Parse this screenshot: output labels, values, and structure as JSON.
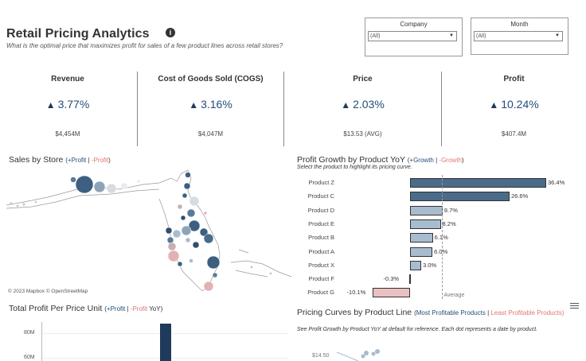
{
  "header": {
    "title": "Retail Pricing Analytics",
    "info_icon": "i",
    "subtitle": "What is the optimal price that maximizes profit for sales of a few product lines across retail stores?"
  },
  "filters": [
    {
      "label": "Company",
      "value": "(All)"
    },
    {
      "label": "Month",
      "value": "(All)"
    }
  ],
  "kpis": [
    {
      "label": "Revenue",
      "change": "3.77%",
      "value": "$4,454M"
    },
    {
      "label": "Cost of Goods Sold (COGS)",
      "change": "3.16%",
      "value": "$4,047M"
    },
    {
      "label": "Price",
      "change": "2.03%",
      "value": "$13.53 (AVG)"
    },
    {
      "label": "Profit",
      "change": "10.24%",
      "value": "$407.4M"
    }
  ],
  "map": {
    "title": "Sales by Store",
    "legend_pos": "+Profit",
    "legend_sep": "|",
    "legend_neg": "-Profit",
    "attribution": "© 2023 Mapbox  © OpenStreetMap"
  },
  "profit_growth": {
    "title": "Profit Growth by Product YoY",
    "legend_pos": "+Growth",
    "legend_sep": "|",
    "legend_neg": "-Growth",
    "note": "Select the product to highlight its pricing curve.",
    "average_label": "Average"
  },
  "chart_data": [
    {
      "type": "bar",
      "title": "Profit Growth by Product YoY",
      "categories": [
        "Product Z",
        "Product C",
        "Product D",
        "Product E",
        "Product B",
        "Product A",
        "Product X",
        "Product F",
        "Product G"
      ],
      "values": [
        36.4,
        26.6,
        8.7,
        8.2,
        6.1,
        6.0,
        3.0,
        -0.3,
        -10.1
      ],
      "labels": [
        "36.4%",
        "26.6%",
        "8.7%",
        "8.2%",
        "6.1%",
        "6.0%",
        "3.0%",
        "-0.3%",
        "-10.1%"
      ],
      "colors": {
        "positive_strong": "#4a6b89",
        "positive_light": "#a8bccf",
        "negative": "#e9c1c1"
      }
    },
    {
      "type": "bar",
      "title": "Total Profit Per Price Unit",
      "y_ticks": [
        "80M",
        "60M"
      ]
    },
    {
      "type": "scatter",
      "title": "Pricing Curves by Product Line",
      "y_ticks": [
        "$14.50"
      ]
    }
  ],
  "total_profit": {
    "title": "Total Profit Per Price Unit",
    "legend_pos": "+Profit",
    "legend_sep": "|",
    "legend_neg": "-Profit",
    "legend_suffix": "YoY)"
  },
  "pricing_curves": {
    "title": "Pricing Curves by Product Line",
    "legend_pos": "Most Profitable Products",
    "legend_sep": "|",
    "legend_neg_1": "Least Profitable",
    "legend_neg_2": "Products)",
    "note": "See Profit Growth by Product YoY at default for reference. Each dot represents a date by product.",
    "menu_icon": "hamburger-icon"
  }
}
